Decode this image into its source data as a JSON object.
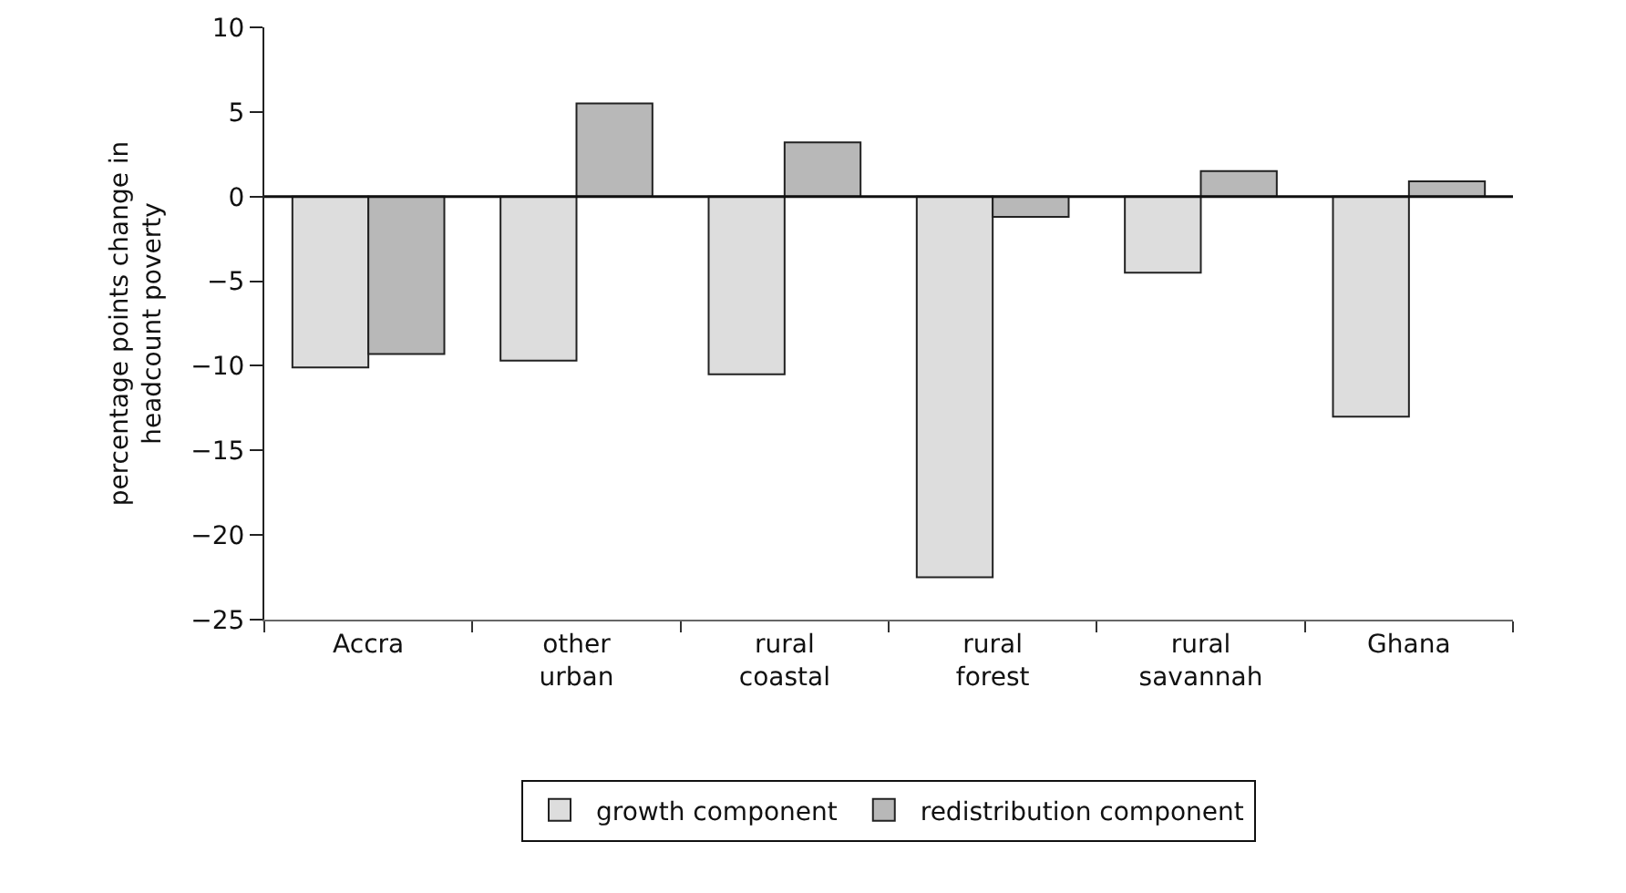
{
  "chart_data": {
    "type": "bar",
    "ylabel": "percentage points change in headcount poverty",
    "categories": [
      "Accra",
      "other urban",
      "rural coastal",
      "rural forest",
      "rural savannah",
      "Ghana"
    ],
    "series": [
      {
        "name": "growth component",
        "color": "#dddddd",
        "values": [
          -10.1,
          -9.7,
          -10.5,
          -22.5,
          -4.5,
          -13.0
        ]
      },
      {
        "name": "redistribution component",
        "color": "#b8b8b8",
        "values": [
          -9.3,
          5.5,
          3.2,
          -1.2,
          1.5,
          0.9
        ]
      }
    ],
    "ylim": [
      -25,
      10
    ],
    "yticks": [
      -25,
      -20,
      -15,
      -10,
      -5,
      0,
      5,
      10
    ],
    "grid": false,
    "legend": "bottom",
    "ref_lines": [
      {
        "axis": "y",
        "value": 0,
        "color": "#111111"
      }
    ]
  }
}
